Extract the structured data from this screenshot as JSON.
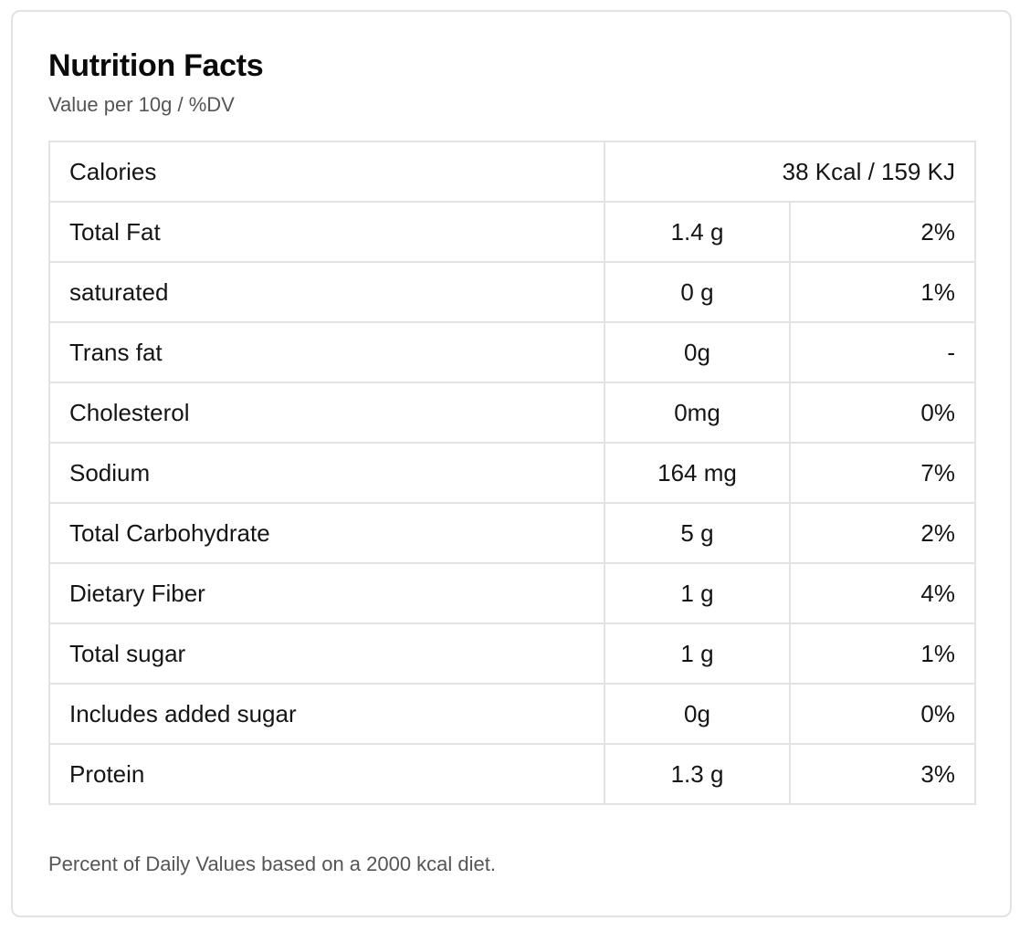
{
  "panel": {
    "title": "Nutrition Facts",
    "subtitle": "Value per 10g / %DV",
    "footnote": "Percent of Daily Values based on a 2000 kcal diet."
  },
  "calories": {
    "label": "Calories",
    "value": "38 Kcal / 159 KJ"
  },
  "nutrients": [
    {
      "name": "Total Fat",
      "amount": "1.4 g",
      "dv": "2%"
    },
    {
      "name": "saturated",
      "amount": "0 g",
      "dv": "1%"
    },
    {
      "name": "Trans fat",
      "amount": "0g",
      "dv": "-"
    },
    {
      "name": "Cholesterol",
      "amount": "0mg",
      "dv": "0%"
    },
    {
      "name": "Sodium",
      "amount": "164 mg",
      "dv": "7%"
    },
    {
      "name": "Total Carbohydrate",
      "amount": "5 g",
      "dv": "2%"
    },
    {
      "name": "Dietary Fiber",
      "amount": "1 g",
      "dv": "4%"
    },
    {
      "name": "Total sugar",
      "amount": "1 g",
      "dv": "1%"
    },
    {
      "name": "Includes added sugar",
      "amount": "0g",
      "dv": "0%"
    },
    {
      "name": "Protein",
      "amount": "1.3 g",
      "dv": "3%"
    }
  ]
}
